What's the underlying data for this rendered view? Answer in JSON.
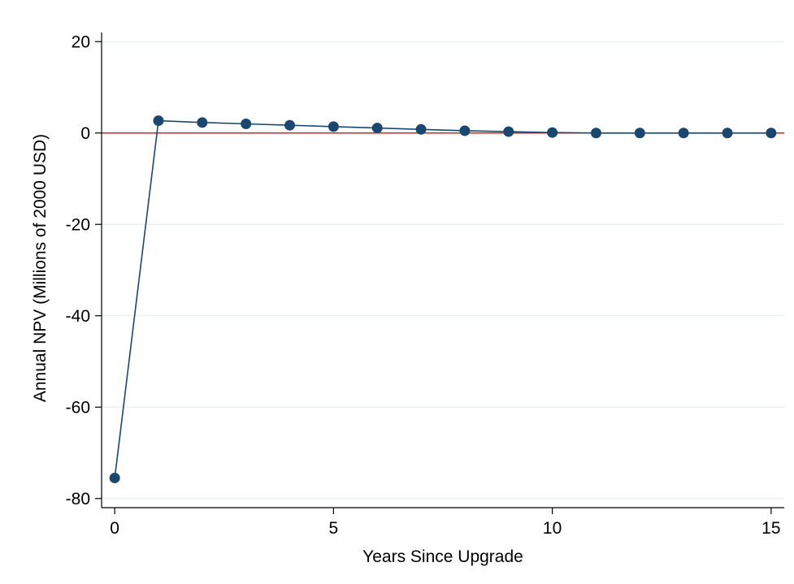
{
  "chart_data": {
    "type": "line",
    "title": "",
    "xlabel": "Years Since Upgrade",
    "ylabel": "Annual NPV (Millions of 2000 USD)",
    "xlim": [
      -0.3,
      15.3
    ],
    "ylim": [
      -82,
      22
    ],
    "x_ticks": [
      0,
      5,
      10,
      15
    ],
    "y_ticks": [
      -80,
      -60,
      -40,
      -20,
      0,
      20
    ],
    "grid": "horizontal",
    "legend": "none",
    "reference_line": {
      "y": 0,
      "color": "#e0201b"
    },
    "colors": {
      "series": "#1a476f",
      "grid": "#e9eef2",
      "axis": "#000000"
    },
    "series": [
      {
        "x": [
          0,
          1,
          2,
          3,
          4,
          5,
          6,
          7,
          8,
          9,
          10,
          11,
          12,
          13,
          14,
          15
        ],
        "y": [
          -75.5,
          2.7,
          2.3,
          2.0,
          1.7,
          1.4,
          1.1,
          0.8,
          0.5,
          0.3,
          0.1,
          0.0,
          0.0,
          0.0,
          0.0,
          0.0
        ]
      }
    ]
  }
}
